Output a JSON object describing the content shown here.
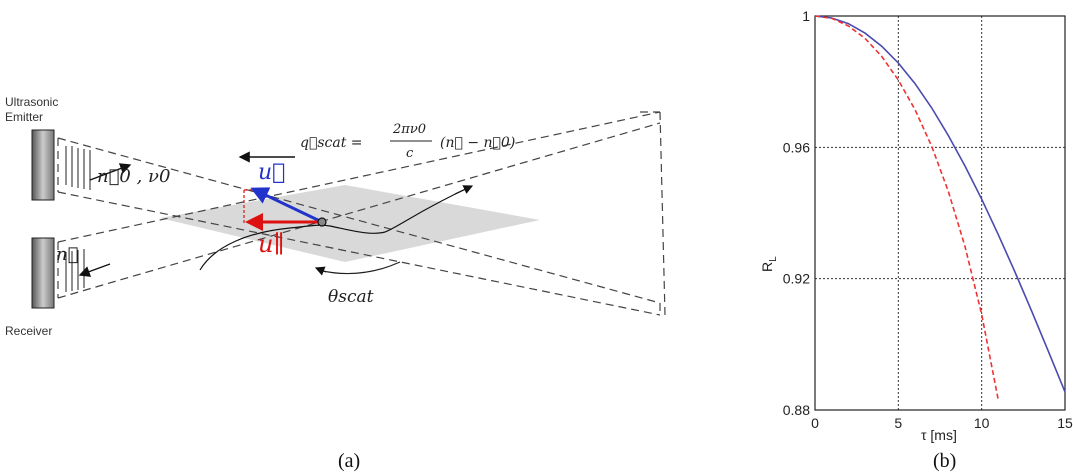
{
  "diagram": {
    "emitter_label_1": "Ultrasonic",
    "emitter_label_2": "Emitter",
    "receiver_label": "Receiver",
    "n0_label": "n⃗0 , ν0",
    "n_label": "n⃗",
    "qscat_label": "q⃗scat =",
    "qscat_num": "2πν0",
    "qscat_den": "c",
    "qscat_paren": "(n⃗ − n⃗0)",
    "u_label": "u⃗",
    "upar_label": "u∥",
    "theta_label": "θscat",
    "caption": "(a)",
    "colors": {
      "u": "#2233cc",
      "upar": "#dd1111",
      "volume": "#d9d9d9"
    }
  },
  "chart": {
    "caption": "(b)",
    "ylabel": "R",
    "ylabel_sub": "L",
    "xlabel": "τ [ms]",
    "chart_data": {
      "type": "line",
      "xlim": [
        0,
        15
      ],
      "ylim": [
        0.88,
        1
      ],
      "x_ticks": [
        "0",
        "5",
        "10",
        "15"
      ],
      "y_ticks": [
        "0.88",
        "0.92",
        "0.96",
        "1"
      ],
      "grid": true,
      "series": [
        {
          "style": "solid",
          "color": "#4a4ab0",
          "x": [
            0,
            1,
            2,
            3,
            4,
            5,
            6,
            7,
            8,
            9,
            10,
            11,
            12,
            13,
            14,
            15
          ],
          "y": [
            1.0,
            0.9994,
            0.9977,
            0.9948,
            0.9908,
            0.9857,
            0.9794,
            0.972,
            0.9636,
            0.9543,
            0.9442,
            0.9334,
            0.922,
            0.9101,
            0.8979,
            0.8855
          ]
        },
        {
          "style": "dashed",
          "color": "#ee3333",
          "x": [
            0,
            1,
            2,
            3,
            4,
            5,
            6,
            7,
            8,
            9,
            10,
            11
          ],
          "y": [
            1.0,
            0.9993,
            0.997,
            0.9932,
            0.9877,
            0.9805,
            0.9715,
            0.9603,
            0.9466,
            0.9298,
            0.9091,
            0.883
          ]
        }
      ]
    }
  }
}
